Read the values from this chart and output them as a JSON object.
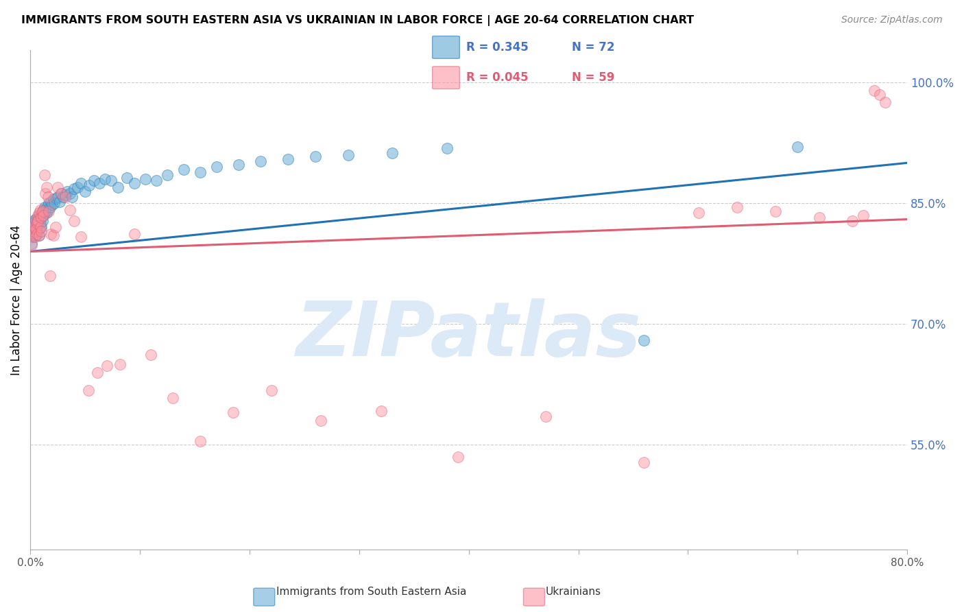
{
  "title": "IMMIGRANTS FROM SOUTH EASTERN ASIA VS UKRAINIAN IN LABOR FORCE | AGE 20-64 CORRELATION CHART",
  "source": "Source: ZipAtlas.com",
  "ylabel": "In Labor Force | Age 20-64",
  "right_ytick_labels": [
    "55.0%",
    "70.0%",
    "85.0%",
    "100.0%"
  ],
  "right_yticks": [
    0.55,
    0.7,
    0.85,
    1.0
  ],
  "legend_blue_r": "R = 0.345",
  "legend_blue_n": "N = 72",
  "legend_pink_r": "R = 0.045",
  "legend_pink_n": "N = 59",
  "blue_color": "#6baed6",
  "pink_color": "#fc8d9b",
  "blue_edge_color": "#3182bd",
  "pink_edge_color": "#e05c72",
  "blue_line_color": "#2171b5",
  "pink_line_color": "#e05c72",
  "watermark": "ZIPatlas",
  "watermark_color": "#dce9f7",
  "xlim": [
    0.0,
    0.8
  ],
  "ylim": [
    0.42,
    1.04
  ],
  "blue_trendline": [
    0.79,
    0.9
  ],
  "pink_trendline": [
    0.79,
    0.83
  ],
  "blue_x": [
    0.001,
    0.002,
    0.003,
    0.003,
    0.004,
    0.004,
    0.005,
    0.005,
    0.005,
    0.006,
    0.006,
    0.007,
    0.007,
    0.008,
    0.008,
    0.008,
    0.009,
    0.009,
    0.01,
    0.01,
    0.011,
    0.011,
    0.012,
    0.012,
    0.013,
    0.013,
    0.014,
    0.015,
    0.015,
    0.016,
    0.017,
    0.018,
    0.019,
    0.02,
    0.021,
    0.022,
    0.024,
    0.025,
    0.027,
    0.028,
    0.03,
    0.032,
    0.034,
    0.036,
    0.038,
    0.04,
    0.043,
    0.046,
    0.05,
    0.054,
    0.058,
    0.063,
    0.068,
    0.074,
    0.08,
    0.088,
    0.095,
    0.105,
    0.115,
    0.125,
    0.14,
    0.155,
    0.17,
    0.19,
    0.21,
    0.235,
    0.26,
    0.29,
    0.33,
    0.38,
    0.56,
    0.7
  ],
  "blue_y": [
    0.8,
    0.808,
    0.812,
    0.825,
    0.818,
    0.83,
    0.81,
    0.82,
    0.828,
    0.815,
    0.822,
    0.83,
    0.825,
    0.81,
    0.818,
    0.835,
    0.825,
    0.832,
    0.82,
    0.835,
    0.828,
    0.84,
    0.835,
    0.842,
    0.838,
    0.845,
    0.84,
    0.838,
    0.845,
    0.842,
    0.85,
    0.845,
    0.852,
    0.848,
    0.855,
    0.85,
    0.856,
    0.858,
    0.852,
    0.862,
    0.858,
    0.86,
    0.865,
    0.862,
    0.858,
    0.868,
    0.87,
    0.875,
    0.865,
    0.872,
    0.878,
    0.875,
    0.88,
    0.878,
    0.87,
    0.882,
    0.875,
    0.88,
    0.878,
    0.885,
    0.892,
    0.888,
    0.895,
    0.898,
    0.902,
    0.905,
    0.908,
    0.91,
    0.912,
    0.918,
    0.68,
    0.92
  ],
  "pink_x": [
    0.001,
    0.002,
    0.003,
    0.003,
    0.004,
    0.004,
    0.005,
    0.005,
    0.006,
    0.006,
    0.007,
    0.007,
    0.008,
    0.008,
    0.009,
    0.009,
    0.01,
    0.01,
    0.011,
    0.012,
    0.013,
    0.014,
    0.015,
    0.016,
    0.017,
    0.018,
    0.019,
    0.021,
    0.023,
    0.025,
    0.028,
    0.032,
    0.036,
    0.04,
    0.046,
    0.053,
    0.061,
    0.07,
    0.082,
    0.095,
    0.11,
    0.13,
    0.155,
    0.185,
    0.22,
    0.265,
    0.32,
    0.39,
    0.47,
    0.56,
    0.61,
    0.645,
    0.68,
    0.72,
    0.75,
    0.76,
    0.77,
    0.775,
    0.78
  ],
  "pink_y": [
    0.798,
    0.81,
    0.822,
    0.815,
    0.808,
    0.82,
    0.83,
    0.818,
    0.825,
    0.812,
    0.835,
    0.828,
    0.81,
    0.838,
    0.82,
    0.842,
    0.815,
    0.832,
    0.84,
    0.835,
    0.885,
    0.862,
    0.87,
    0.858,
    0.84,
    0.76,
    0.812,
    0.81,
    0.82,
    0.87,
    0.862,
    0.858,
    0.842,
    0.828,
    0.808,
    0.618,
    0.64,
    0.648,
    0.65,
    0.812,
    0.662,
    0.608,
    0.555,
    0.59,
    0.618,
    0.58,
    0.592,
    0.535,
    0.585,
    0.528,
    0.838,
    0.845,
    0.84,
    0.832,
    0.828,
    0.835,
    0.99,
    0.985,
    0.975
  ]
}
